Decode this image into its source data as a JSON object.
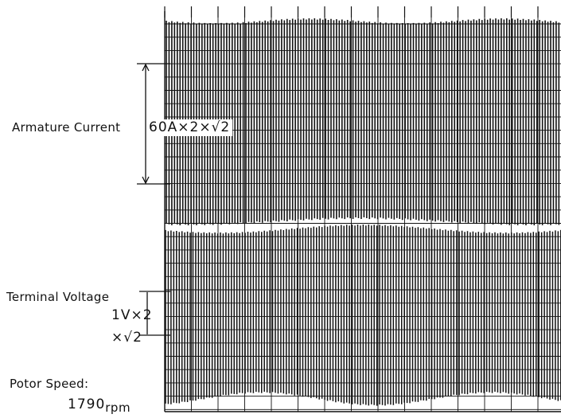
{
  "armature": {
    "label": "Armature Current",
    "scale": "60A×2×√2"
  },
  "terminal": {
    "label": "Terminal Voltage",
    "scale_line1": "1V×2",
    "scale_line2": "×√2"
  },
  "rotor": {
    "label": "Potor Speed:",
    "value": "1790",
    "unit": "rpm"
  }
}
